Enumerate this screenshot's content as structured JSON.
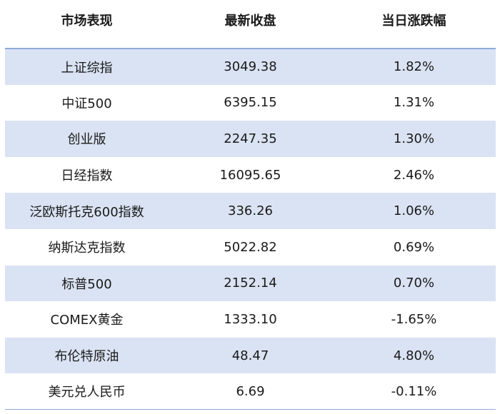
{
  "table": {
    "headers": [
      "市场表现",
      "最新收盘",
      "当日涨跌幅"
    ],
    "rows": [
      [
        "上证综指",
        "3049.38",
        "1.82%"
      ],
      [
        "中证500",
        "6395.15",
        "1.31%"
      ],
      [
        "创业版",
        "2247.35",
        "1.30%"
      ],
      [
        "日经指数",
        "16095.65",
        "2.46%"
      ],
      [
        "泛欧斯托克600指数",
        "336.26",
        "1.06%"
      ],
      [
        "纳斯达克指数",
        "5022.82",
        "0.69%"
      ],
      [
        "标普500",
        "2152.14",
        "0.70%"
      ],
      [
        "COMEX黄金",
        "1333.10",
        "-1.65%"
      ],
      [
        "布伦特原油",
        "48.47",
        "4.80%"
      ],
      [
        "美元兑人民币",
        "6.69",
        "-0.11%"
      ]
    ]
  }
}
